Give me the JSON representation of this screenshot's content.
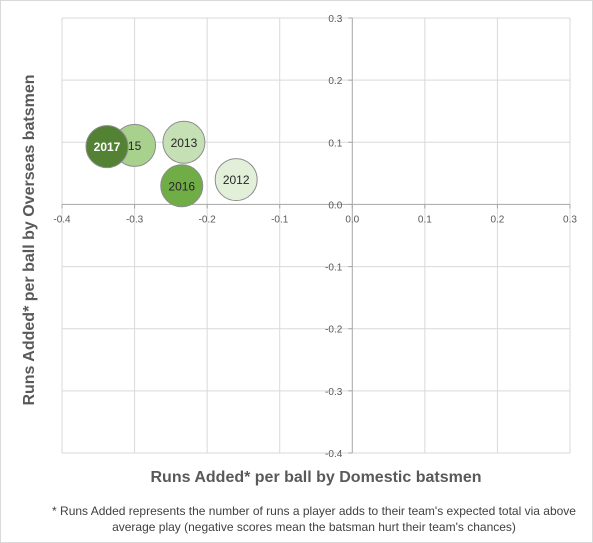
{
  "chart_data": {
    "type": "bubble",
    "xlabel": "Runs Added* per ball by Domestic batsmen",
    "ylabel": "Runs Added* per ball by Overseas batsmen",
    "xlim": [
      -0.4,
      0.3
    ],
    "ylim": [
      -0.4,
      0.3
    ],
    "x_ticks": [
      "-0.4",
      "-0.3",
      "-0.2",
      "-0.1",
      "0.0",
      "0.1",
      "0.2",
      "0.3"
    ],
    "y_ticks": [
      "0.3",
      "0.2",
      "0.1",
      "0.0",
      "-0.1",
      "-0.2",
      "-0.3",
      "-0.4"
    ],
    "grid": true,
    "points": [
      {
        "label": "15",
        "x": -0.3,
        "y": 0.095,
        "color": "#a9d18e",
        "text_color": "#262626"
      },
      {
        "label": "2013",
        "x": -0.232,
        "y": 0.1,
        "color": "#c5e0b4",
        "text_color": "#262626"
      },
      {
        "label": "2012",
        "x": -0.16,
        "y": 0.04,
        "color": "#e2f0d9",
        "text_color": "#262626"
      },
      {
        "label": "2016",
        "x": -0.235,
        "y": 0.03,
        "color": "#70ad47",
        "text_color": "#262626"
      },
      {
        "label": "2017",
        "x": -0.338,
        "y": 0.093,
        "color": "#548235",
        "text_color": "#ffffff"
      }
    ],
    "footnote": "* Runs Added represents the number of runs a player adds to their team's expected total via above average play (negative scores mean the batsman hurt their team's chances)"
  }
}
